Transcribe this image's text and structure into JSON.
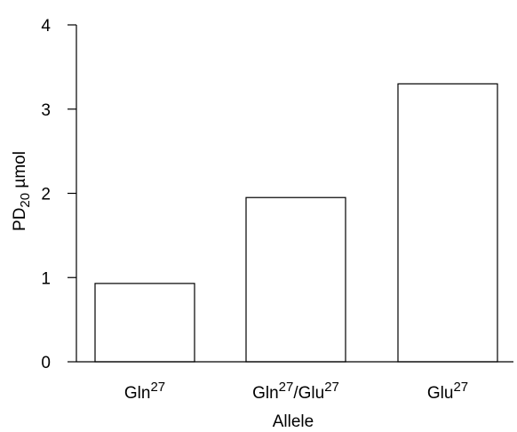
{
  "chart_data": {
    "type": "bar",
    "categories": [
      {
        "base": "Gln",
        "sup": "27",
        "base2": "",
        "sup2": ""
      },
      {
        "base": "Gln",
        "sup": "27",
        "base2": "/Glu",
        "sup2": "27"
      },
      {
        "base": "Glu",
        "sup": "27",
        "base2": "",
        "sup2": ""
      }
    ],
    "values": [
      0.93,
      1.95,
      3.3
    ],
    "xlabel": "Allele",
    "ylabel": {
      "main": "PD",
      "sub": "20",
      "unit": " µmol"
    },
    "ylim": [
      0,
      4
    ],
    "yticks": [
      "0",
      "1",
      "2",
      "3",
      "4"
    ],
    "grid": false,
    "colors": {
      "bar_fill": "#ffffff",
      "bar_stroke": "#000000",
      "axis": "#000000"
    }
  }
}
